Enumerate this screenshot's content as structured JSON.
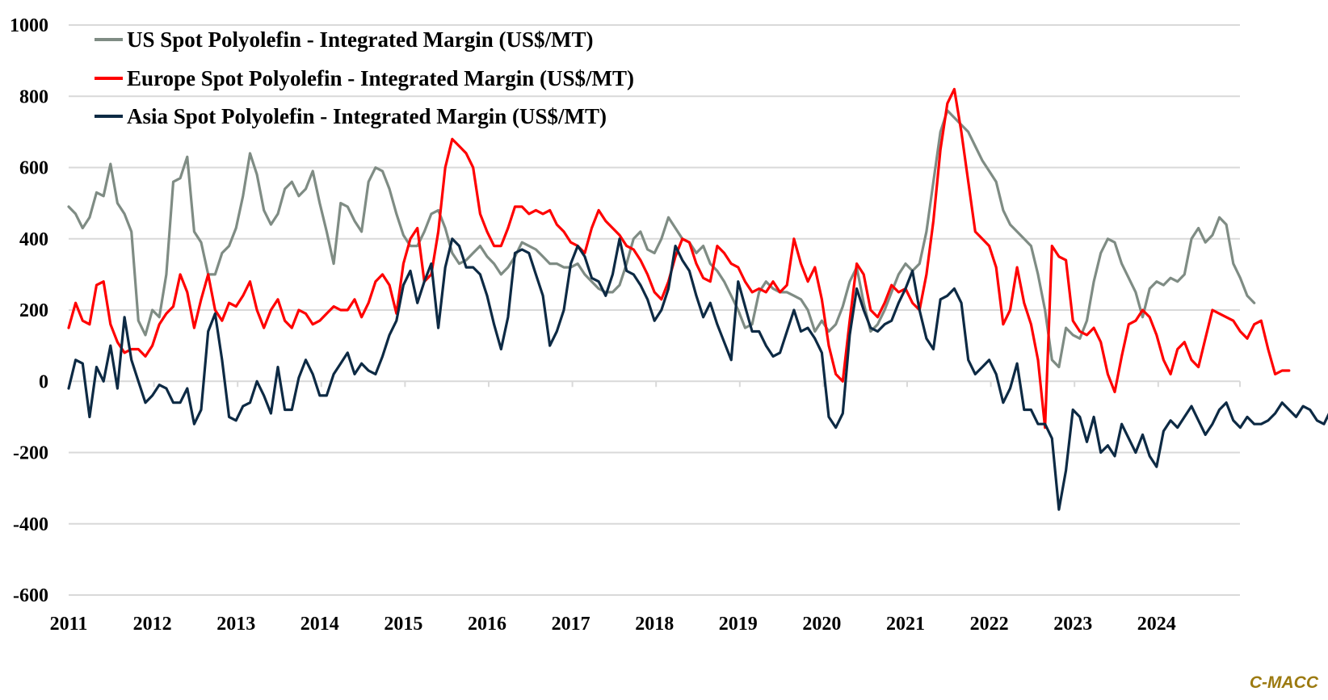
{
  "chart_data": {
    "type": "line",
    "title": "",
    "xlabel": "",
    "ylabel": "",
    "ylim": [
      -600,
      1000
    ],
    "yticks": [
      1000,
      800,
      600,
      400,
      200,
      0,
      -200,
      -400,
      -600
    ],
    "xlim": [
      2011.0,
      2025.0
    ],
    "xticks": [
      "2011",
      "2012",
      "2013",
      "2014",
      "2015",
      "2016",
      "2017",
      "2018",
      "2019",
      "2020",
      "2021",
      "2022",
      "2023",
      "2024"
    ],
    "grid": true,
    "legend_position": "top-left",
    "source_label": "C-MACC",
    "x_step_years": 0.0833333,
    "x_start": 2011.0,
    "series": [
      {
        "name": "US Spot Polyolefin - Integrated Margin (US$/MT)",
        "color": "#7f8c84",
        "values": [
          490,
          470,
          430,
          460,
          530,
          520,
          610,
          500,
          470,
          420,
          170,
          130,
          200,
          180,
          300,
          560,
          570,
          630,
          420,
          390,
          300,
          300,
          360,
          380,
          430,
          520,
          640,
          580,
          480,
          440,
          470,
          540,
          560,
          520,
          540,
          590,
          500,
          420,
          330,
          500,
          490,
          450,
          420,
          560,
          600,
          590,
          540,
          470,
          410,
          380,
          380,
          420,
          470,
          480,
          430,
          360,
          330,
          340,
          360,
          380,
          350,
          330,
          300,
          320,
          350,
          390,
          380,
          370,
          350,
          330,
          330,
          320,
          320,
          330,
          300,
          280,
          260,
          250,
          250,
          270,
          330,
          400,
          420,
          370,
          360,
          400,
          460,
          430,
          400,
          390,
          360,
          380,
          330,
          310,
          280,
          240,
          200,
          150,
          160,
          250,
          280,
          260,
          250,
          250,
          240,
          230,
          200,
          140,
          170,
          140,
          160,
          210,
          280,
          320,
          220,
          140,
          160,
          200,
          250,
          300,
          330,
          310,
          330,
          420,
          560,
          700,
          760,
          740,
          720,
          700,
          660,
          620,
          590,
          560,
          480,
          440,
          420,
          400,
          380,
          300,
          200,
          60,
          40,
          150,
          130,
          120,
          170,
          280,
          360,
          400,
          390,
          330,
          290,
          250,
          180,
          260,
          280,
          270,
          290,
          280,
          300,
          400,
          430,
          390,
          410,
          460,
          440,
          330,
          290,
          240,
          220
        ]
      },
      {
        "name": "Europe Spot Polyolefin - Integrated Margin (US$/MT)",
        "color": "#ff0000",
        "values": [
          150,
          220,
          170,
          160,
          270,
          280,
          160,
          110,
          80,
          90,
          90,
          70,
          100,
          160,
          190,
          210,
          300,
          250,
          150,
          230,
          300,
          200,
          170,
          220,
          210,
          240,
          280,
          200,
          150,
          200,
          230,
          170,
          150,
          200,
          190,
          160,
          170,
          190,
          210,
          200,
          200,
          230,
          180,
          220,
          280,
          300,
          270,
          190,
          330,
          400,
          430,
          280,
          300,
          420,
          600,
          680,
          660,
          640,
          600,
          470,
          420,
          380,
          380,
          430,
          490,
          490,
          470,
          480,
          470,
          480,
          440,
          420,
          390,
          380,
          360,
          430,
          480,
          450,
          430,
          410,
          380,
          370,
          340,
          300,
          250,
          230,
          280,
          350,
          400,
          390,
          330,
          290,
          280,
          380,
          360,
          330,
          320,
          280,
          250,
          260,
          250,
          280,
          250,
          270,
          400,
          330,
          280,
          320,
          230,
          100,
          20,
          0,
          170,
          330,
          300,
          200,
          180,
          220,
          270,
          250,
          260,
          220,
          200,
          300,
          450,
          650,
          780,
          820,
          700,
          560,
          420,
          400,
          380,
          320,
          160,
          200,
          320,
          220,
          160,
          60,
          -130,
          380,
          350,
          340,
          170,
          140,
          130,
          150,
          110,
          20,
          -30,
          70,
          160,
          170,
          200,
          180,
          130,
          60,
          20,
          90,
          110,
          60,
          40,
          120,
          200,
          190,
          180,
          170,
          140,
          120,
          160,
          170,
          90,
          20,
          30,
          30
        ]
      },
      {
        "name": "Asia Spot Polyolefin - Integrated Margin (US$/MT)",
        "color": "#0d2a44",
        "values": [
          -20,
          60,
          50,
          -100,
          40,
          0,
          100,
          -20,
          180,
          60,
          0,
          -60,
          -40,
          -10,
          -20,
          -60,
          -60,
          -20,
          -120,
          -80,
          140,
          190,
          60,
          -100,
          -110,
          -70,
          -60,
          0,
          -40,
          -90,
          40,
          -80,
          -80,
          10,
          60,
          20,
          -40,
          -40,
          20,
          50,
          80,
          20,
          50,
          30,
          20,
          70,
          130,
          170,
          270,
          310,
          220,
          280,
          330,
          150,
          320,
          400,
          380,
          320,
          320,
          300,
          240,
          160,
          90,
          180,
          360,
          370,
          360,
          300,
          240,
          100,
          140,
          200,
          330,
          380,
          350,
          290,
          280,
          240,
          300,
          400,
          310,
          300,
          270,
          230,
          170,
          200,
          260,
          380,
          340,
          310,
          240,
          180,
          220,
          160,
          110,
          60,
          280,
          210,
          140,
          140,
          100,
          70,
          80,
          140,
          200,
          140,
          150,
          120,
          80,
          -100,
          -130,
          -90,
          130,
          260,
          200,
          150,
          140,
          160,
          170,
          220,
          260,
          310,
          200,
          120,
          90,
          230,
          240,
          260,
          220,
          60,
          20,
          40,
          60,
          20,
          -60,
          -20,
          50,
          -80,
          -80,
          -120,
          -120,
          -160,
          -360,
          -250,
          -80,
          -100,
          -170,
          -100,
          -200,
          -180,
          -210,
          -120,
          -160,
          -200,
          -150,
          -210,
          -240,
          -140,
          -110,
          -130,
          -100,
          -70,
          -110,
          -150,
          -120,
          -80,
          -60,
          -110,
          -130,
          -100,
          -120,
          -120,
          -110,
          -90,
          -60,
          -80,
          -100,
          -70,
          -80,
          -110,
          -120,
          -80,
          -120
        ]
      }
    ]
  }
}
